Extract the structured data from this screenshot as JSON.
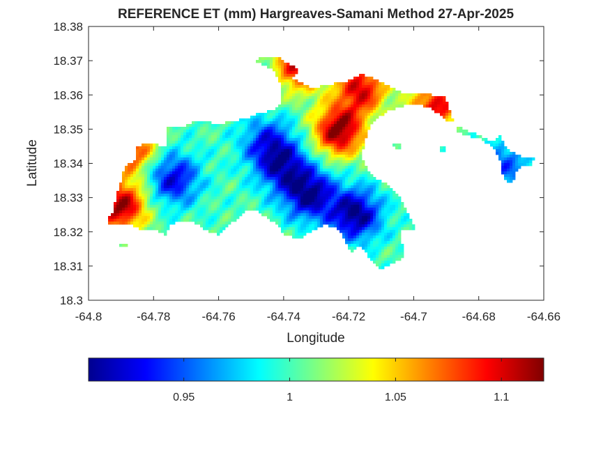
{
  "chart_data": {
    "type": "heatmap",
    "title": "REFERENCE ET (mm) Hargreaves-Samani Method  27-Apr-2025",
    "xlabel": "Longitude",
    "ylabel": "Latitude",
    "xlim": [
      -64.8,
      -64.66
    ],
    "ylim": [
      18.3,
      18.38
    ],
    "x_ticks": [
      -64.8,
      -64.78,
      -64.76,
      -64.74,
      -64.72,
      -64.7,
      -64.68,
      -64.66
    ],
    "y_ticks": [
      18.3,
      18.31,
      18.32,
      18.33,
      18.34,
      18.35,
      18.36,
      18.37,
      18.38
    ],
    "x_tick_labels": [
      "-64.8",
      "-64.78",
      "-64.76",
      "-64.74",
      "-64.72",
      "-64.7",
      "-64.68",
      "-64.66"
    ],
    "y_tick_labels": [
      "18.3",
      "18.31",
      "18.32",
      "18.33",
      "18.34",
      "18.35",
      "18.36",
      "18.37",
      "18.38"
    ],
    "colormap": "jet",
    "grid": false,
    "colorbar": {
      "orientation": "horizontal",
      "placement": "below",
      "clim": [
        0.905,
        1.12
      ],
      "ticks": [
        0.95,
        1.0,
        1.05,
        1.1
      ],
      "tick_labels": [
        "0.95",
        "1",
        "1.05",
        "1.1"
      ]
    },
    "value_range": [
      0.905,
      1.12
    ],
    "hotspots": [
      {
        "lon": -64.723,
        "lat": 18.3495,
        "value": 1.12
      },
      {
        "lon": -64.79,
        "lat": 18.3275,
        "value": 1.115
      },
      {
        "lon": -64.735,
        "lat": 18.3685,
        "value": 1.1
      },
      {
        "lon": -64.716,
        "lat": 18.362,
        "value": 1.1
      },
      {
        "lon": -64.693,
        "lat": 18.3565,
        "value": 1.1
      },
      {
        "lon": -64.787,
        "lat": 18.3445,
        "value": 1.09
      }
    ],
    "coldspots": [
      {
        "lon": -64.718,
        "lat": 18.325,
        "value": 0.905
      },
      {
        "lon": -64.732,
        "lat": 18.331,
        "value": 0.91
      },
      {
        "lon": -64.774,
        "lat": 18.3355,
        "value": 0.925
      },
      {
        "lon": -64.74,
        "lat": 18.339,
        "value": 0.93
      },
      {
        "lon": -64.745,
        "lat": 18.346,
        "value": 0.94
      },
      {
        "lon": -64.672,
        "lat": 18.3395,
        "value": 0.95
      }
    ]
  }
}
